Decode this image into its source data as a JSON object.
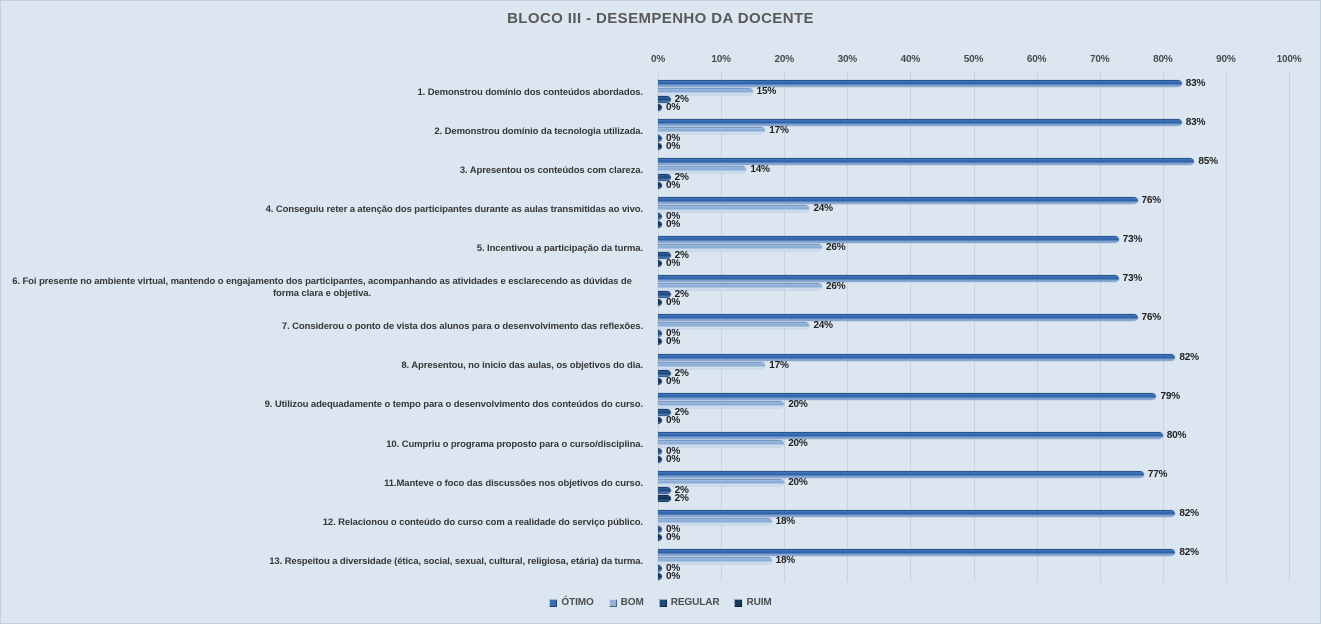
{
  "title": "BLOCO III - DESEMPENHO DA DOCENTE",
  "legend": {
    "items": [
      "ÓTIMO",
      "BOM",
      "REGULAR",
      "RUIM"
    ]
  },
  "colors": {
    "background": "#dce6f1",
    "gridline": "#c8d2e1",
    "title_text": "#595959",
    "category_text": "#363636",
    "value_text": "#1f1f1f",
    "otimo": "#3a6cb0",
    "bom": "#95b3d7",
    "regular": "#1f497d",
    "ruim": "#17375e"
  },
  "chart_data": {
    "type": "bar",
    "orientation": "horizontal",
    "title": "BLOCO III - DESEMPENHO DA DOCENTE",
    "xlim": [
      0,
      100
    ],
    "x_ticks": [
      "0%",
      "10%",
      "20%",
      "30%",
      "40%",
      "50%",
      "60%",
      "70%",
      "80%",
      "90%",
      "100%"
    ],
    "grid": "vertical",
    "legend_position": "bottom",
    "value_suffix": "%",
    "categories": [
      "1. Demonstrou domínio dos conteúdos abordados.",
      "2. Demonstrou domínio da tecnologia utilizada.",
      "3. Apresentou os conteúdos com clareza.",
      "4. Conseguiu reter a atenção dos participantes durante as aulas transmitidas ao vivo.",
      "5. Incentivou a participação da turma.",
      "6. Foi presente no ambiente virtual, mantendo o engajamento dos participantes, acompanhando as atividades e esclarecendo as dúvidas de forma clara e objetiva.",
      "7. Considerou o ponto de vista dos alunos para o desenvolvimento das reflexões.",
      "8. Apresentou, no inicio das aulas, os objetivos do dia.",
      "9. Utilizou adequadamente o tempo para o desenvolvimento dos conteúdos do curso.",
      "10. Cumpriu o programa proposto para o curso/disciplina.",
      "11.Manteve o foco das discussões nos objetivos do curso.",
      "12. Relacionou o conteúdo do curso com a realidade do serviço público.",
      "13. Respeitou a diversidade (ética, social, sexual, cultural, religiosa, etária) da turma."
    ],
    "series": [
      {
        "name": "ÓTIMO",
        "color": "#3a6cb0",
        "values": [
          83,
          83,
          85,
          76,
          73,
          73,
          76,
          82,
          79,
          80,
          77,
          82,
          82
        ]
      },
      {
        "name": "BOM",
        "color": "#95b3d7",
        "values": [
          15,
          17,
          14,
          24,
          26,
          26,
          24,
          17,
          20,
          20,
          20,
          18,
          18
        ]
      },
      {
        "name": "REGULAR",
        "color": "#1f497d",
        "values": [
          2,
          0,
          2,
          0,
          2,
          2,
          0,
          2,
          2,
          0,
          2,
          0,
          0
        ]
      },
      {
        "name": "RUIM",
        "color": "#17375e",
        "values": [
          0,
          0,
          0,
          0,
          0,
          0,
          0,
          0,
          0,
          0,
          2,
          0,
          0
        ]
      }
    ]
  }
}
